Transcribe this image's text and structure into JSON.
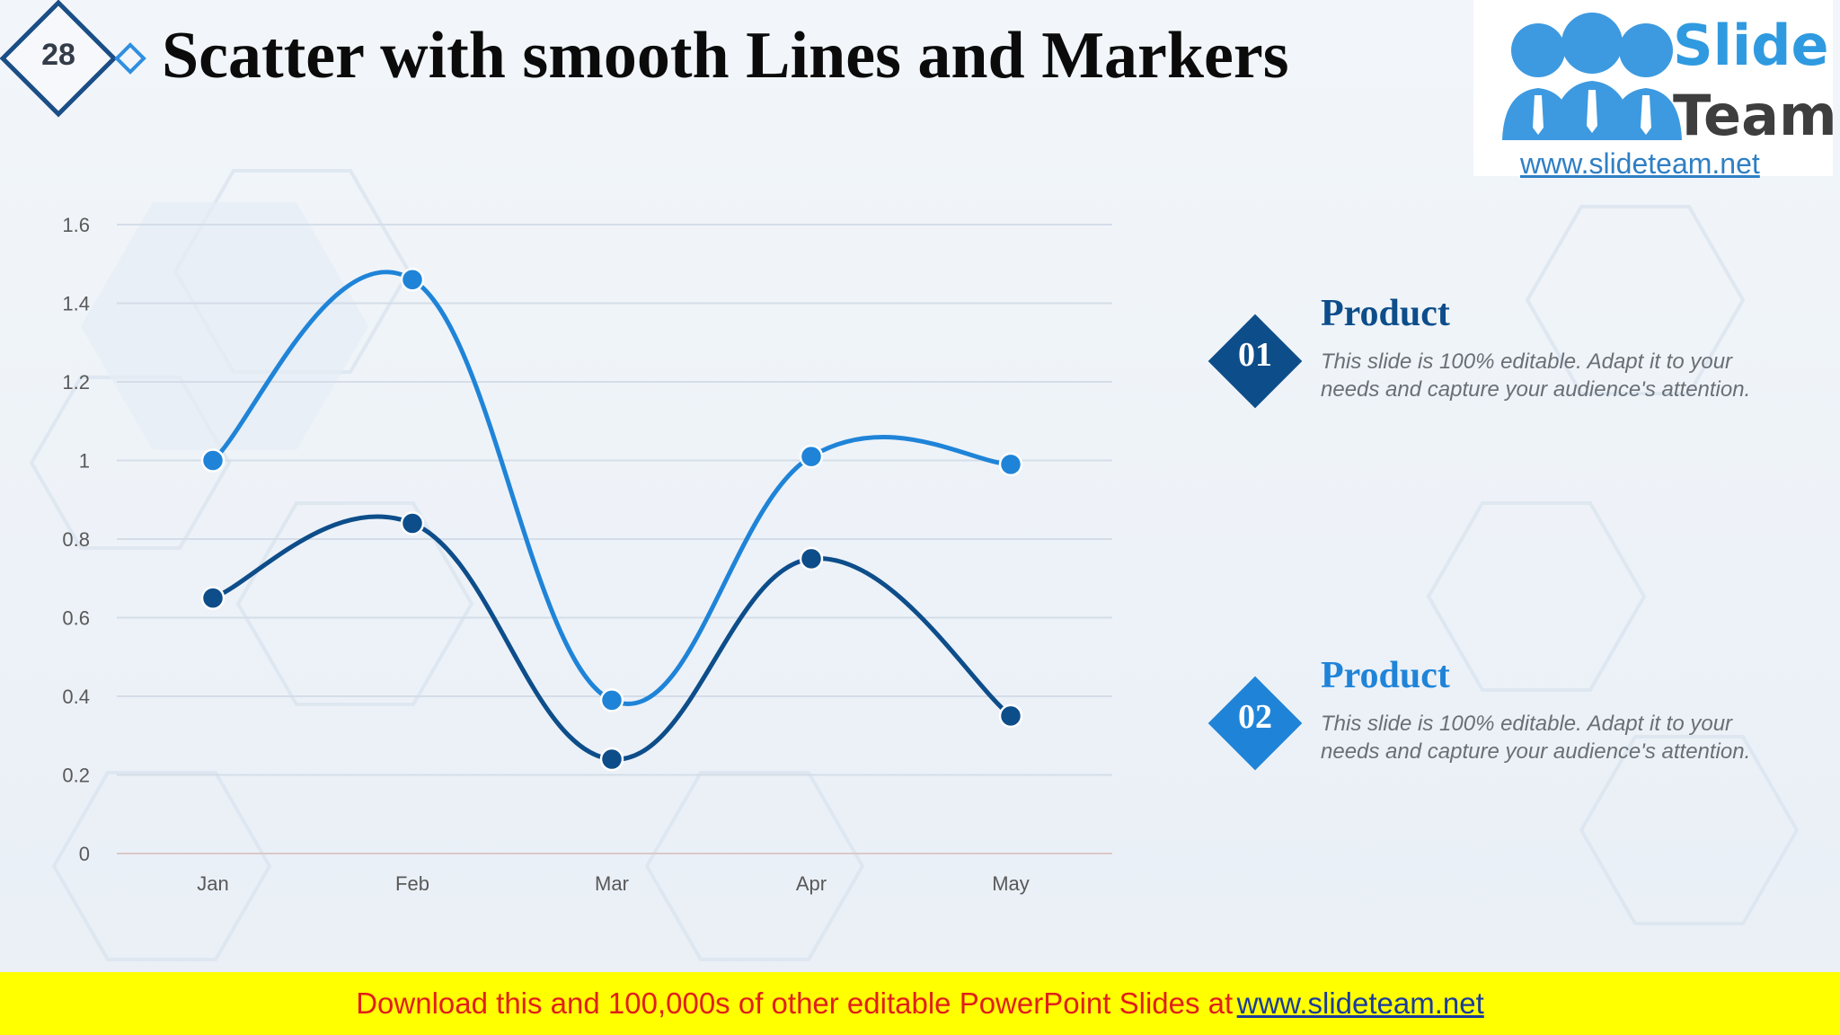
{
  "slide": {
    "number": "28",
    "title": "Scatter with smooth Lines and Markers"
  },
  "logo": {
    "word1": "Slide",
    "word2": "Team",
    "url": "www.slideteam.net"
  },
  "legend": [
    {
      "num": "01",
      "title": "Product",
      "desc": "This slide is 100% editable. Adapt it to your needs and capture your audience's attention.",
      "color": "#0d4d8a"
    },
    {
      "num": "02",
      "title": "Product",
      "desc": "This slide is 100% editable. Adapt it to your needs and capture your audience's attention.",
      "color": "#1f84d8"
    }
  ],
  "footer": {
    "text": "Download this and 100,000s of other editable PowerPoint Slides at",
    "link": "www.slideteam.net"
  },
  "chart_data": {
    "type": "line",
    "smooth": true,
    "markers": true,
    "categories": [
      "Jan",
      "Feb",
      "Mar",
      "Apr",
      "May"
    ],
    "ylim": [
      0,
      1.6
    ],
    "yticks": [
      "0",
      "0.2",
      "0.4",
      "0.6",
      "0.8",
      "1",
      "1.2",
      "1.4",
      "1.6"
    ],
    "grid": true,
    "series": [
      {
        "values": [
          1.0,
          1.46,
          0.39,
          1.01,
          0.99
        ],
        "color": "#1f84d8"
      },
      {
        "values": [
          0.65,
          0.84,
          0.24,
          0.75,
          0.35
        ],
        "color": "#0d4d8a"
      }
    ]
  }
}
